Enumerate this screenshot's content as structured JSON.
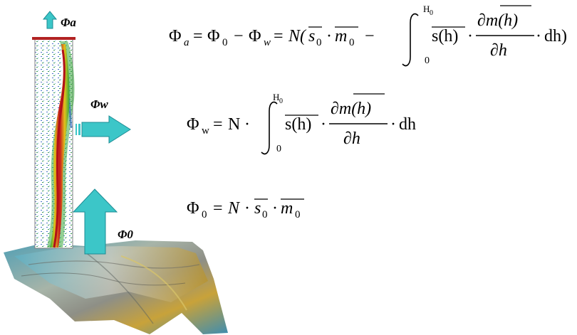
{
  "labels": {
    "phi_a": "Φa",
    "phi_w": "Φw",
    "phi_0": "Φ0"
  },
  "icons": {
    "up_arrow": "up-arrow-icon",
    "right_arrow": "right-arrow-icon"
  },
  "colors": {
    "arrow_fill": "#3cc6c8",
    "arrow_stroke": "#1d8c94",
    "column_top_bar": "#b22222",
    "echogram_red": "#c8141e",
    "echogram_green": "#3aa83c",
    "echogram_blue": "#2a5fc4"
  },
  "equations": {
    "eq1": {
      "lhs": "Φ",
      "lhs_sub": "a",
      "eq": "=",
      "t1": "Φ",
      "t1_sub": "0",
      "minus": "−",
      "t2": "Φ",
      "t2_sub": "w",
      "eq2": "=",
      "N": "N(",
      "s0": "s",
      "s0_sub": "0",
      "dot": "·",
      "m0": "m",
      "m0_sub": "0",
      "minus2": "−",
      "int_upper": "H",
      "int_upper_sub": "0",
      "int_lower": "0",
      "sh": "s(h)",
      "dot2": "·",
      "num": "∂m(h)",
      "den": "∂h",
      "dot3": "·",
      "dh": "dh)"
    },
    "eq2": {
      "lhs": "Φ",
      "lhs_sub": "w",
      "eq": "=",
      "N": "N",
      "dot": "·",
      "int_upper": "H",
      "int_upper_sub": "0",
      "int_lower": "0",
      "sh": "s(h)",
      "dot2": "·",
      "num": "∂m(h)",
      "den": "∂h",
      "dot3": "·",
      "dh": "dh"
    },
    "eq3": {
      "lhs": "Φ",
      "lhs_sub": "0",
      "eq": "=",
      "N": "N",
      "dot": "·",
      "s0": "s",
      "s0_sub": "0",
      "dot2": "·",
      "m0": "m",
      "m0_sub": "0"
    }
  }
}
